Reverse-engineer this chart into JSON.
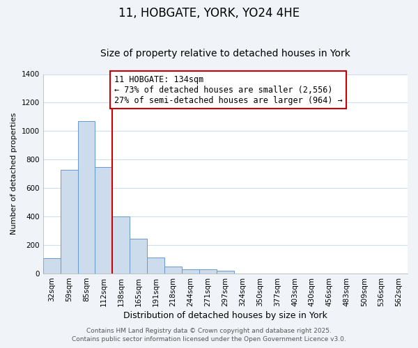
{
  "title": "11, HOBGATE, YORK, YO24 4HE",
  "subtitle": "Size of property relative to detached houses in York",
  "xlabel": "Distribution of detached houses by size in York",
  "ylabel": "Number of detached properties",
  "categories": [
    "32sqm",
    "59sqm",
    "85sqm",
    "112sqm",
    "138sqm",
    "165sqm",
    "191sqm",
    "218sqm",
    "244sqm",
    "271sqm",
    "297sqm",
    "324sqm",
    "350sqm",
    "377sqm",
    "403sqm",
    "430sqm",
    "456sqm",
    "483sqm",
    "509sqm",
    "536sqm",
    "562sqm"
  ],
  "values": [
    110,
    730,
    1070,
    750,
    400,
    245,
    115,
    50,
    28,
    28,
    20,
    0,
    0,
    0,
    0,
    0,
    0,
    0,
    0,
    0,
    0
  ],
  "bar_color": "#ccdcec",
  "bar_edge_color": "#6699cc",
  "vline_color": "#cc0000",
  "annotation_title": "11 HOBGATE: 134sqm",
  "annotation_line1": "← 73% of detached houses are smaller (2,556)",
  "annotation_line2": "27% of semi-detached houses are larger (964) →",
  "annotation_box_color": "#ffffff",
  "annotation_box_edge": "#cc0000",
  "ylim": [
    0,
    1400
  ],
  "yticks": [
    0,
    200,
    400,
    600,
    800,
    1000,
    1200,
    1400
  ],
  "plot_bg_color": "#ffffff",
  "fig_bg_color": "#f0f4f8",
  "grid_color": "#ccddee",
  "footnote1": "Contains HM Land Registry data © Crown copyright and database right 2025.",
  "footnote2": "Contains public sector information licensed under the Open Government Licence v3.0.",
  "title_fontsize": 12,
  "subtitle_fontsize": 10,
  "xlabel_fontsize": 9,
  "ylabel_fontsize": 8,
  "tick_fontsize": 7.5,
  "annotation_fontsize": 8.5,
  "footnote_fontsize": 6.5
}
